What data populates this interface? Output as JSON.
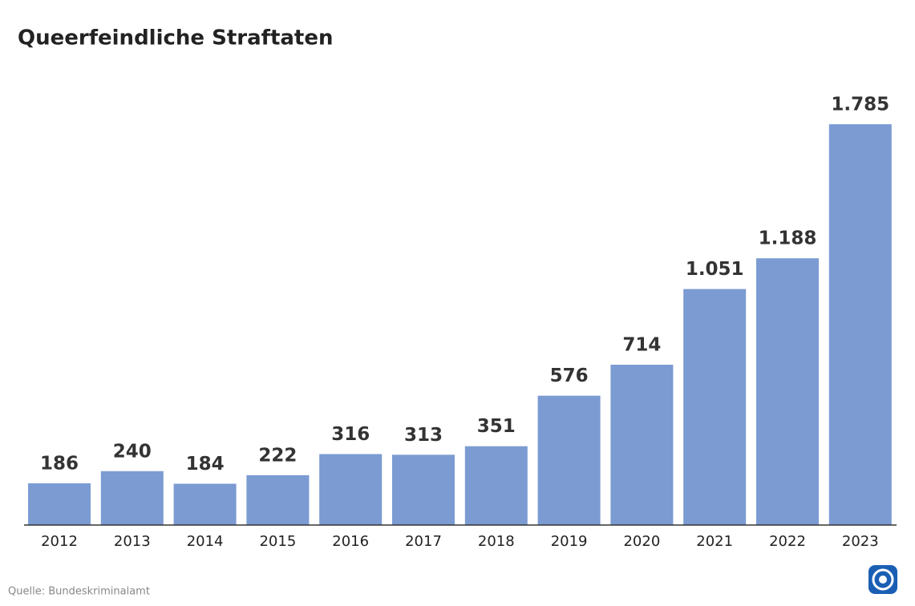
{
  "chart_data": {
    "type": "bar",
    "title": "Queerfeindliche Straftaten",
    "categories": [
      "2012",
      "2013",
      "2014",
      "2015",
      "2016",
      "2017",
      "2018",
      "2019",
      "2020",
      "2021",
      "2022",
      "2023"
    ],
    "values": [
      186,
      240,
      184,
      222,
      316,
      313,
      351,
      576,
      714,
      1051,
      1188,
      1785
    ],
    "value_labels": [
      "186",
      "240",
      "184",
      "222",
      "316",
      "313",
      "351",
      "576",
      "714",
      "1.051",
      "1.188",
      "1.785"
    ],
    "color": "#7b9bd2",
    "source": "Quelle: Bundeskriminalamt"
  }
}
